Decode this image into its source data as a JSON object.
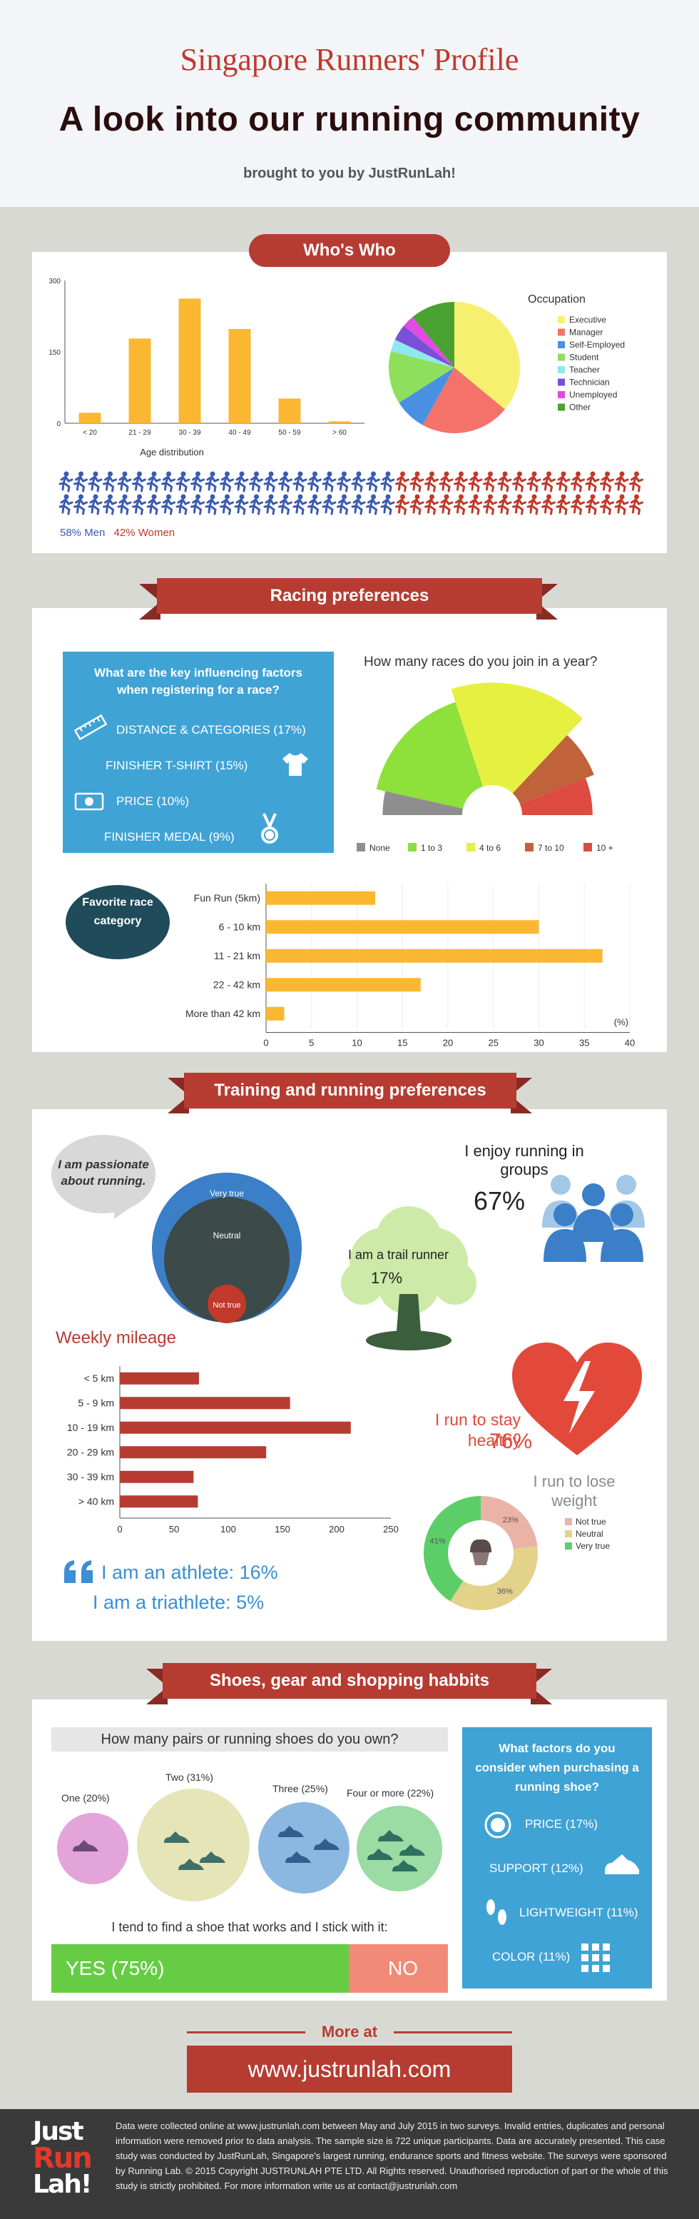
{
  "header": {
    "title": "Singapore Runners' Profile",
    "subtitle": "A look into our running community",
    "byline": "brought to you by JustRunLah!"
  },
  "sections": {
    "whos_who": "Who's Who",
    "racing": "Racing preferences",
    "training": "Training and running preferences",
    "shoes": "Shoes, gear and shopping habbits"
  },
  "gender": {
    "men": "58% Men",
    "women": "42% Women",
    "men_share": 0.58
  },
  "factors": {
    "question": "What are the key influencing factors when registering for a race?",
    "items": [
      "DISTANCE & CATEGORIES  (17%)",
      "FINISHER T-SHIRT (15%)",
      "PRICE (10%)",
      "FINISHER MEDAL (9%)"
    ],
    "icons": [
      "ruler-icon",
      "tshirt-icon",
      "money-icon",
      "medal-icon"
    ]
  },
  "bubble_fav": "Favorite race category",
  "passion": {
    "bubble": "I am passionate about running.",
    "very_true": "Very true",
    "neutral": "Neutral",
    "not_true": "Not true"
  },
  "groups": {
    "label": "I enjoy running in groups",
    "pct": "67%"
  },
  "trail": {
    "label": "I am a trail runner",
    "pct": "17%"
  },
  "healthy": {
    "label": "I run to stay healthy",
    "pct": "76%"
  },
  "weight": {
    "label": "I run to lose weight"
  },
  "athlete": {
    "line1": "I am an athlete:  16%",
    "line2": "I am a triathlete:  5%"
  },
  "shoes": {
    "question": "How many pairs or running shoes do you own?",
    "options": [
      "One (20%)",
      "Two (31%)",
      "Three (25%)",
      "Four or more (22%)"
    ],
    "stick": "I tend to find a shoe that works and I stick with it:",
    "yes": "YES (75%)",
    "no": "NO",
    "yes_share": 0.75
  },
  "purchase": {
    "question": "What factors do you consider when purchasing a running shoe?",
    "items": [
      "PRICE (17%)",
      "SUPPORT (12%)",
      "LIGHTWEIGHT (11%)",
      "COLOR (11%)"
    ],
    "icons": [
      "dollar-icon",
      "shoe-icon",
      "footprints-icon",
      "palette-icon"
    ]
  },
  "more": {
    "label": "More at",
    "url": "www.justrunlah.com"
  },
  "footer": {
    "logo": "Just Run Lah!",
    "text": "Data were collected online at www.justrunlah.com between May and July 2015 in two surveys. Invalid entries, duplicates and personal information were removed prior to data analysis. The sample size is 722 unique participants. Data are accurately presented. This case study was conducted by JustRunLah, Singapore's largest running, endurance sports and fitness website. The surveys were sponsored by Running Lab. © 2015 Copyright JUSTRUNLAH PTE LTD. All Rights reserved. Unauthorised reproduction of part or the whole of this study is strictly prohibited. For more information write us at contact@justrunlah.com"
  },
  "colors": {
    "accent": "#b63c32",
    "orange": "#fbb731",
    "blue": "#3fa3d5",
    "runner_blue": "#3b5ab1",
    "runner_red": "#c0392b"
  },
  "chart_data": [
    {
      "id": "age",
      "type": "bar",
      "xlabel": "Age distribution",
      "categories": [
        "< 20",
        "21 - 29",
        "30 - 39",
        "40 - 49",
        "50 - 59",
        "> 60"
      ],
      "values": [
        22,
        178,
        262,
        198,
        52,
        4
      ],
      "yticks": [
        0,
        150,
        300
      ],
      "ylim": [
        0,
        300
      ]
    },
    {
      "id": "occupation",
      "type": "pie",
      "title": "Occupation",
      "labels": [
        "Executive",
        "Manager",
        "Self-Employed",
        "Student",
        "Teacher",
        "Technician",
        "Unemployed",
        "Other"
      ],
      "values": [
        36,
        22,
        8,
        13,
        3,
        4,
        3,
        11
      ],
      "colors": [
        "#f6f071",
        "#f5726a",
        "#4a90e2",
        "#8ee05c",
        "#8fe7f0",
        "#7a50d6",
        "#e14be3",
        "#4aa331"
      ]
    },
    {
      "id": "races",
      "type": "pie",
      "title": "How many races do you join in a year?",
      "labels": [
        "None",
        "1 to 3",
        "4 to 6",
        "7 to 10",
        "10 +"
      ],
      "values": [
        7,
        33,
        34,
        14,
        12
      ],
      "colors": [
        "#8e8e8e",
        "#8ee03a",
        "#e5f040",
        "#c0623a",
        "#de4a40"
      ]
    },
    {
      "id": "favorite",
      "type": "bar",
      "orientation": "horizontal",
      "categories": [
        "Fun Run (5km)",
        "6 - 10 km",
        "11 - 21 km",
        "22 - 42 km",
        "More than 42 km"
      ],
      "values": [
        12,
        30,
        37,
        17,
        2
      ],
      "xticks": [
        0,
        5,
        10,
        15,
        20,
        25,
        30,
        35,
        40
      ],
      "xlim": [
        0,
        40
      ],
      "unit": "(%)"
    },
    {
      "id": "passion",
      "type": "pie",
      "labels": [
        "Very true",
        "Neutral",
        "Not true"
      ],
      "values": [
        55,
        40,
        5
      ],
      "colors": [
        "#3a7fc7",
        "#3d4a4a",
        "#c0392b"
      ]
    },
    {
      "id": "mileage",
      "type": "bar",
      "orientation": "horizontal",
      "title": "Weekly mileage",
      "categories": [
        "< 5 km",
        "5 - 9 km",
        "10 - 19 km",
        "20 - 29 km",
        "30 - 39 km",
        "> 40 km"
      ],
      "values": [
        73,
        157,
        213,
        135,
        68,
        72
      ],
      "xticks": [
        0,
        50,
        100,
        150,
        200,
        250
      ],
      "xlim": [
        0,
        250
      ]
    },
    {
      "id": "weight",
      "type": "pie",
      "labels": [
        "Not true",
        "Neutral",
        "Very true"
      ],
      "values": [
        23,
        36,
        41
      ],
      "colors": [
        "#eab3a6",
        "#e3d28a",
        "#5cce67"
      ]
    }
  ]
}
